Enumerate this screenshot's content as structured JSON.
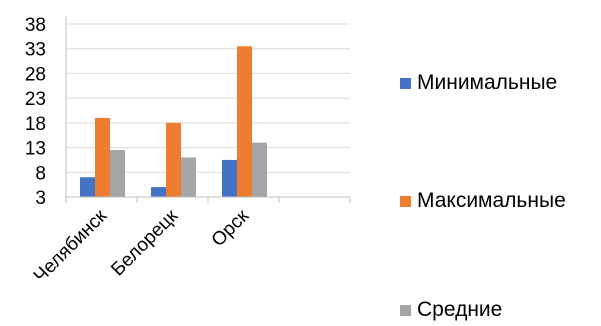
{
  "chart_data": {
    "type": "bar",
    "title": "",
    "xlabel": "",
    "ylabel": "",
    "categories": [
      "Челябинск",
      "Белорецк",
      "Орск",
      ""
    ],
    "series": [
      {
        "name": "Минимальные",
        "values": [
          7,
          5,
          10.5,
          null
        ],
        "color": "#4472C4"
      },
      {
        "name": "Максимальные",
        "values": [
          19,
          18,
          33.5,
          null
        ],
        "color": "#ED7D31"
      },
      {
        "name": "Средние",
        "values": [
          12.5,
          11,
          14,
          null
        ],
        "color": "#A5A5A5"
      }
    ],
    "ylim": [
      3,
      38
    ],
    "yticks": [
      "38",
      "33",
      "28",
      "23",
      "18",
      "13",
      "8",
      "3"
    ],
    "grid": true,
    "legend_position": "right"
  },
  "legend": {
    "items": [
      {
        "label": "Минимальные",
        "color": "#4472C4"
      },
      {
        "label": "Максимальные",
        "color": "#ED7D31"
      },
      {
        "label": "Средние",
        "color": "#A5A5A5"
      }
    ]
  }
}
